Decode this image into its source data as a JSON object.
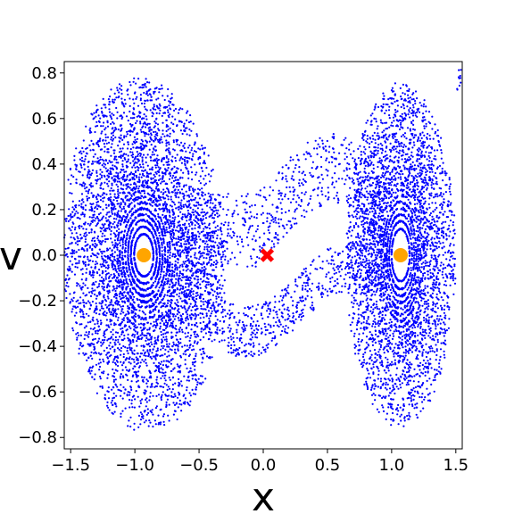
{
  "chart_data": {
    "type": "scatter",
    "title": "",
    "xlabel": "x",
    "ylabel": "v",
    "xlim": [
      -1.55,
      1.55
    ],
    "ylim": [
      -0.85,
      0.85
    ],
    "xticks": [
      -1.5,
      -1.0,
      -0.5,
      0.0,
      0.5,
      1.0,
      1.5
    ],
    "xtick_labels": [
      "−1.5",
      "−1.0",
      "−0.5",
      "0.0",
      "0.5",
      "1.0",
      "1.5"
    ],
    "yticks": [
      -0.8,
      -0.6,
      -0.4,
      -0.2,
      0.0,
      0.2,
      0.4,
      0.6,
      0.8
    ],
    "ytick_labels": [
      "−0.8",
      "−0.6",
      "−0.4",
      "−0.2",
      "0.0",
      "0.2",
      "0.4",
      "0.6",
      "0.8"
    ],
    "grid": false,
    "legend": false,
    "series": [
      {
        "kind": "orbit_points",
        "color": "#0000ff",
        "description_of_regions": [
          {
            "center": [
              -0.93,
              0.0
            ],
            "x_radius_range": [
              0.04,
              0.62
            ],
            "v_radius_range": [
              0.05,
              0.76
            ]
          },
          {
            "center": [
              1.07,
              0.0
            ],
            "x_radius_range": [
              0.04,
              0.42
            ],
            "v_radius_range": [
              0.06,
              0.74
            ]
          }
        ]
      },
      {
        "kind": "stable_fixed_points",
        "color": "#ffa500",
        "marker": "circle",
        "points": [
          [
            -0.93,
            0.0
          ],
          [
            1.07,
            0.0
          ]
        ]
      },
      {
        "kind": "unstable_fixed_point",
        "color": "#ff0000",
        "marker": "x",
        "points": [
          [
            0.03,
            0.0
          ]
        ]
      }
    ]
  }
}
